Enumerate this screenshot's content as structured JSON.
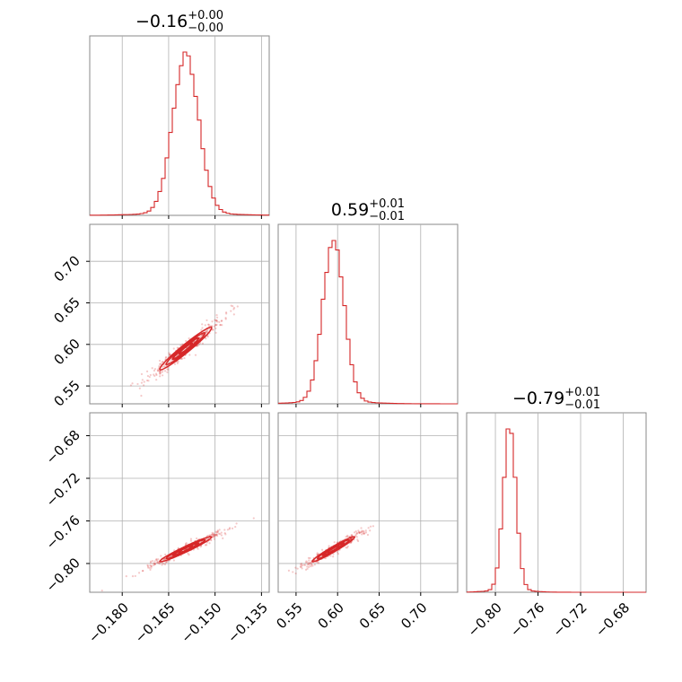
{
  "chart_data": {
    "type": "corner",
    "color": "#d62728",
    "parameters": [
      {
        "title": {
          "main": "−0.16",
          "upper": "+0.00",
          "lower": "−0.00"
        },
        "range": [
          -0.1905,
          -0.1325
        ],
        "ticks": [
          -0.18,
          -0.165,
          -0.15,
          -0.135
        ],
        "tick_labels": [
          "−0.180",
          "−0.165",
          "−0.150",
          "−0.135"
        ],
        "mean": -0.1595,
        "sigma": 0.0042
      },
      {
        "title": {
          "main": "0.59",
          "upper": "+0.01",
          "lower": "−0.01"
        },
        "range": [
          0.5285,
          0.7445
        ],
        "ticks": [
          0.55,
          0.6,
          0.65,
          0.7
        ],
        "tick_labels": [
          "0.55",
          "0.60",
          "0.65",
          "0.70"
        ],
        "mean": 0.595,
        "sigma": 0.0128
      },
      {
        "title": {
          "main": "−0.79",
          "upper": "+0.01",
          "lower": "−0.01"
        },
        "range": [
          -0.827,
          -0.6585
        ],
        "ticks": [
          -0.8,
          -0.76,
          -0.72,
          -0.68
        ],
        "tick_labels": [
          "−0.80",
          "−0.76",
          "−0.72",
          "−0.68"
        ],
        "mean": -0.7866,
        "sigma": 0.0059
      }
    ],
    "correlation": 0.97,
    "grid": true,
    "histogram_bins": 50
  }
}
